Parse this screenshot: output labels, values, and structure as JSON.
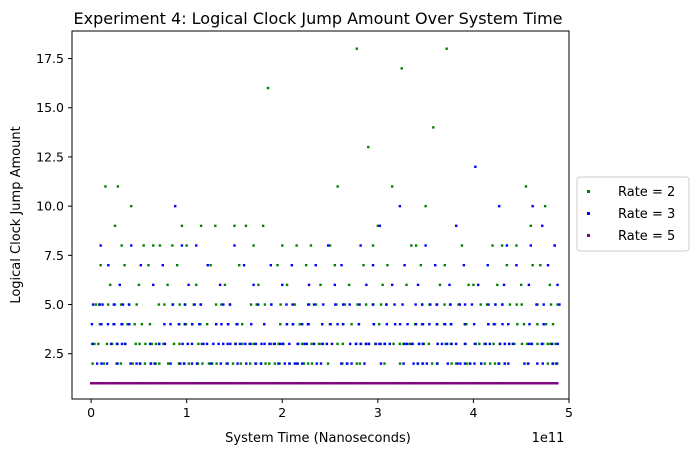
{
  "chart_data": {
    "type": "scatter",
    "title": "Experiment 4: Logical Clock Jump Amount Over System Time",
    "xlabel": "System Time (Nanoseconds)",
    "ylabel": "Logical Clock Jump Amount",
    "x_offset_label": "1e11",
    "xlim": [
      -0.2,
      5.0
    ],
    "ylim": [
      0.2,
      18.9
    ],
    "x_ticks": [
      0,
      1,
      2,
      3,
      4,
      5
    ],
    "x_tick_labels": [
      "0",
      "1",
      "2",
      "3",
      "4",
      "5"
    ],
    "y_ticks": [
      2.5,
      5.0,
      7.5,
      10.0,
      12.5,
      15.0,
      17.5
    ],
    "y_tick_labels": [
      "2.5",
      "5.0",
      "7.5",
      "10.0",
      "12.5",
      "15.0",
      "17.5"
    ],
    "grid": false,
    "legend_position": "outside-right",
    "series": [
      {
        "name": "Rate = 2",
        "color": "#008000",
        "points": [
          [
            0.15,
            11
          ],
          [
            0.28,
            11
          ],
          [
            0.25,
            9
          ],
          [
            0.42,
            10
          ],
          [
            0.32,
            8
          ],
          [
            0.55,
            8
          ],
          [
            0.65,
            8
          ],
          [
            0.72,
            8
          ],
          [
            0.85,
            8
          ],
          [
            0.95,
            9
          ],
          [
            1.15,
            9
          ],
          [
            1.3,
            9
          ],
          [
            1.5,
            9
          ],
          [
            1.62,
            9
          ],
          [
            1.85,
            16
          ],
          [
            1.8,
            9
          ],
          [
            1.7,
            8
          ],
          [
            2.0,
            8
          ],
          [
            2.15,
            8
          ],
          [
            2.3,
            8
          ],
          [
            2.5,
            8
          ],
          [
            2.58,
            11
          ],
          [
            2.78,
            18
          ],
          [
            2.9,
            13
          ],
          [
            3.0,
            9
          ],
          [
            3.15,
            11
          ],
          [
            3.25,
            17
          ],
          [
            3.35,
            8
          ],
          [
            3.5,
            10
          ],
          [
            3.58,
            14
          ],
          [
            3.72,
            18
          ],
          [
            3.88,
            8
          ],
          [
            4.2,
            8
          ],
          [
            4.3,
            8
          ],
          [
            4.45,
            8
          ],
          [
            4.55,
            11
          ],
          [
            4.6,
            9
          ],
          [
            4.62,
            7
          ],
          [
            4.75,
            10
          ],
          [
            4.85,
            8
          ],
          [
            0.1,
            7
          ],
          [
            0.35,
            7
          ],
          [
            0.6,
            7
          ],
          [
            0.9,
            7
          ],
          [
            1.25,
            7
          ],
          [
            1.55,
            7
          ],
          [
            1.95,
            7
          ],
          [
            2.25,
            7
          ],
          [
            2.55,
            7
          ],
          [
            2.85,
            7
          ],
          [
            3.1,
            7
          ],
          [
            3.45,
            7
          ],
          [
            3.7,
            7
          ],
          [
            4.0,
            6
          ],
          [
            4.35,
            7
          ],
          [
            4.7,
            7
          ],
          [
            0.2,
            6
          ],
          [
            0.5,
            6
          ],
          [
            0.8,
            6
          ],
          [
            1.1,
            6
          ],
          [
            1.4,
            6
          ],
          [
            1.75,
            6
          ],
          [
            2.05,
            6
          ],
          [
            2.4,
            6
          ],
          [
            2.7,
            6
          ],
          [
            3.05,
            6
          ],
          [
            3.3,
            6
          ],
          [
            3.65,
            6
          ],
          [
            3.95,
            6
          ],
          [
            4.25,
            6
          ],
          [
            4.5,
            6
          ],
          [
            4.8,
            6
          ],
          [
            3.4,
            8
          ],
          [
            2.95,
            8
          ],
          [
            1.0,
            8
          ],
          [
            0.05,
            5
          ],
          [
            4.88,
            5
          ]
        ]
      },
      {
        "name": "Rate = 3",
        "color": "#0000ff",
        "points": [
          [
            0.88,
            10
          ],
          [
            4.02,
            12
          ],
          [
            4.27,
            10
          ],
          [
            3.23,
            10
          ],
          [
            4.62,
            10
          ],
          [
            4.72,
            9
          ],
          [
            0.1,
            8
          ],
          [
            0.42,
            8
          ],
          [
            0.95,
            8
          ],
          [
            1.1,
            8
          ],
          [
            1.5,
            8
          ],
          [
            2.48,
            8
          ],
          [
            2.82,
            8
          ],
          [
            3.02,
            9
          ],
          [
            3.5,
            8
          ],
          [
            3.82,
            9
          ],
          [
            4.35,
            8
          ],
          [
            4.6,
            8
          ],
          [
            4.85,
            8
          ],
          [
            0.18,
            7
          ],
          [
            0.52,
            7
          ],
          [
            0.75,
            7
          ],
          [
            1.22,
            7
          ],
          [
            1.6,
            7
          ],
          [
            1.88,
            7
          ],
          [
            2.1,
            7
          ],
          [
            2.35,
            7
          ],
          [
            2.62,
            7
          ],
          [
            2.95,
            7
          ],
          [
            3.28,
            7
          ],
          [
            3.6,
            7
          ],
          [
            3.9,
            7
          ],
          [
            4.15,
            7
          ],
          [
            4.45,
            7
          ],
          [
            4.78,
            7
          ],
          [
            0.3,
            6
          ],
          [
            0.65,
            6
          ],
          [
            1.02,
            6
          ],
          [
            1.35,
            6
          ],
          [
            1.7,
            6
          ],
          [
            2.0,
            6
          ],
          [
            2.28,
            6
          ],
          [
            2.55,
            6
          ],
          [
            2.88,
            6
          ],
          [
            3.15,
            6
          ],
          [
            3.42,
            6
          ],
          [
            3.75,
            6
          ],
          [
            4.05,
            6
          ],
          [
            4.32,
            6
          ],
          [
            4.58,
            6
          ],
          [
            4.88,
            6
          ],
          [
            0.12,
            5
          ],
          [
            4.9,
            5
          ]
        ]
      },
      {
        "name": "Rate = 5",
        "color": "#800080",
        "points": []
      }
    ],
    "dense_bands": [
      {
        "series": "Rate = 2",
        "y": 1,
        "x_start": 0.02,
        "x_end": 4.88
      },
      {
        "series": "Rate = 2",
        "y": 2,
        "x_start": 0.02,
        "x_end": 4.88
      },
      {
        "series": "Rate = 2",
        "y": 3,
        "x_start": 0.02,
        "x_end": 4.88
      },
      {
        "series": "Rate = 2",
        "y": 4,
        "x_start": 0.02,
        "x_end": 4.88
      },
      {
        "series": "Rate = 2",
        "y": 5,
        "x_start": 0.02,
        "x_end": 4.88
      },
      {
        "series": "Rate = 3",
        "y": 2,
        "x_start": 0.02,
        "x_end": 4.88
      },
      {
        "series": "Rate = 3",
        "y": 3,
        "x_start": 0.02,
        "x_end": 4.88
      },
      {
        "series": "Rate = 3",
        "y": 4,
        "x_start": 0.02,
        "x_end": 4.88
      },
      {
        "series": "Rate = 3",
        "y": 5,
        "x_start": 0.02,
        "x_end": 4.88
      },
      {
        "series": "Rate = 5",
        "y": 1,
        "x_start": 0.0,
        "x_end": 4.88
      }
    ]
  }
}
